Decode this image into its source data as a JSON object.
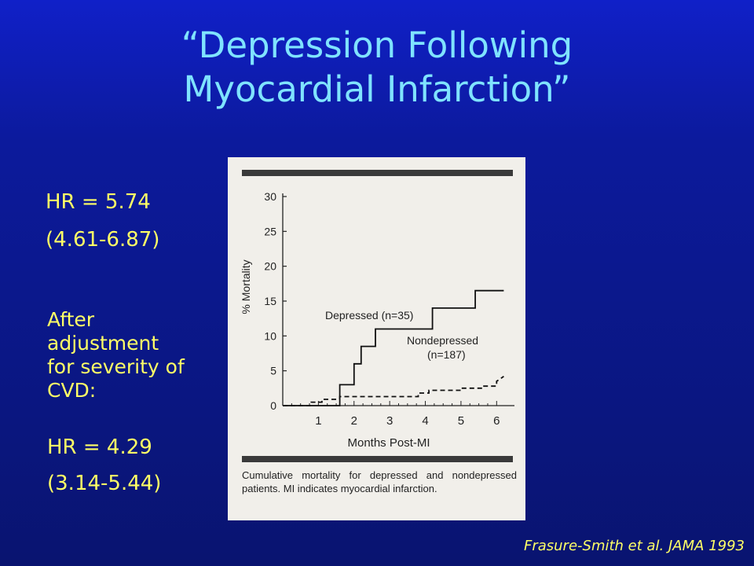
{
  "slide": {
    "title_line1": "“Depression Following",
    "title_line2": "Myocardial Infarction”",
    "hr_main": "HR = 5.74",
    "ci_main": "(4.61-6.87)",
    "adjust_text": "After adjustment for severity of CVD:",
    "hr_adjusted": "HR = 4.29",
    "ci_adjusted": "(3.14-5.44)",
    "citation": "Frasure-Smith et al. JAMA 1993"
  },
  "chart_data": {
    "type": "line",
    "xlabel": "Months Post-MI",
    "ylabel": "% Mortality",
    "xlim": [
      0,
      6.5
    ],
    "ylim": [
      0,
      30
    ],
    "xticks": [
      1,
      2,
      3,
      4,
      5,
      6
    ],
    "yticks": [
      0,
      5,
      10,
      15,
      20,
      25,
      30
    ],
    "grid": false,
    "caption": "Cumulative mortality for depressed and nondepressed patients. MI indicates myocardial infarction.",
    "series": [
      {
        "name": "Depressed (n=35)",
        "label_line1": "Depressed (n=35)",
        "style": "solid",
        "x": [
          0,
          1.6,
          1.6,
          2.0,
          2.0,
          2.2,
          2.2,
          2.6,
          2.6,
          2.8,
          2.8,
          3.2,
          3.2,
          4.2,
          4.2,
          4.6,
          4.6,
          5.4,
          5.4,
          5.7,
          5.7,
          6.2
        ],
        "y": [
          0,
          0,
          3,
          3,
          6,
          6,
          8.5,
          8.5,
          11,
          11,
          11,
          11,
          11,
          11,
          14,
          14,
          14,
          14,
          16.5,
          16.5,
          16.5,
          16.5
        ]
      },
      {
        "name": "Nondepressed (n=187)",
        "label_line1": "Nondepressed",
        "label_line2": "(n=187)",
        "style": "dashed",
        "x": [
          0,
          0.8,
          0.8,
          1.1,
          1.1,
          1.6,
          1.6,
          3.8,
          3.8,
          4.1,
          4.1,
          5.0,
          5.0,
          5.6,
          5.6,
          6.0,
          6.0,
          6.2
        ],
        "y": [
          0,
          0,
          0.5,
          0.5,
          0.9,
          0.9,
          1.3,
          1.3,
          1.8,
          1.8,
          2.2,
          2.2,
          2.5,
          2.5,
          2.8,
          2.8,
          3.5,
          4.2
        ]
      }
    ]
  }
}
